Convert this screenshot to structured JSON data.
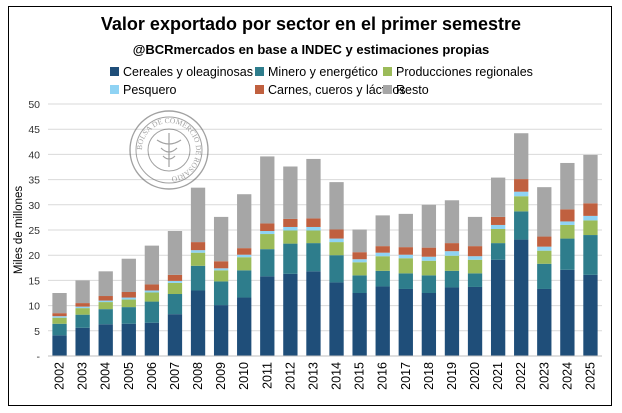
{
  "chart_data": {
    "type": "bar",
    "stacked": true,
    "title": "Valor exportado por sector en el primer semestre",
    "subtitle": "@BCRmercados en base a INDEC y estimaciones propias",
    "ylabel": "Miles de millones",
    "xlabel": "",
    "ylim": [
      0,
      50
    ],
    "yticks": [
      "-",
      "5",
      "10",
      "15",
      "20",
      "25",
      "30",
      "35",
      "40",
      "45",
      "50"
    ],
    "grid": true,
    "legend_position": "top",
    "watermark_text": "BOLSA DE COMERCIO DE ROSARIO",
    "categories": [
      "2002",
      "2003",
      "2004",
      "2005",
      "2006",
      "2007",
      "2008",
      "2009",
      "2010",
      "2011",
      "2012",
      "2013",
      "2014",
      "2015",
      "2016",
      "2017",
      "2018",
      "2019",
      "2020",
      "2021",
      "2022",
      "2023",
      "2024",
      "2025"
    ],
    "series": [
      {
        "name": "Cereales y oleaginosas",
        "color": "#1f4e79",
        "values": [
          4.1,
          5.6,
          6.3,
          6.4,
          6.6,
          8.3,
          13.0,
          10.1,
          11.6,
          15.8,
          16.3,
          16.8,
          14.6,
          12.5,
          13.8,
          13.3,
          12.5,
          13.6,
          13.7,
          19.1,
          23.1,
          13.3,
          17.1,
          16.1
        ]
      },
      {
        "name": "Minero y energético",
        "color": "#2e7d8c",
        "values": [
          2.3,
          2.6,
          3.0,
          3.3,
          4.2,
          4.0,
          4.9,
          4.7,
          5.4,
          5.4,
          6.0,
          5.6,
          5.4,
          3.5,
          3.1,
          3.1,
          3.5,
          3.3,
          2.7,
          3.3,
          5.6,
          5.0,
          6.2,
          7.9
        ]
      },
      {
        "name": "Producciones regionales",
        "color": "#9bbb59",
        "values": [
          1.2,
          1.3,
          1.4,
          1.5,
          1.8,
          2.2,
          2.6,
          2.2,
          2.6,
          3.0,
          2.6,
          2.5,
          2.6,
          2.6,
          2.9,
          3.0,
          2.9,
          3.0,
          2.7,
          2.8,
          3.0,
          2.6,
          2.7,
          2.9
        ]
      },
      {
        "name": "Pesquero",
        "color": "#8fd3f4",
        "values": [
          0.3,
          0.3,
          0.3,
          0.4,
          0.4,
          0.4,
          0.5,
          0.4,
          0.5,
          0.6,
          0.7,
          0.7,
          0.7,
          0.6,
          0.7,
          0.7,
          0.8,
          0.9,
          0.7,
          0.8,
          0.9,
          0.8,
          0.7,
          0.9
        ]
      },
      {
        "name": "Carnes, cueros y lácteos",
        "color": "#c0603f",
        "values": [
          0.6,
          0.7,
          0.9,
          1.1,
          1.2,
          1.2,
          1.6,
          1.4,
          1.3,
          1.5,
          1.6,
          1.7,
          1.8,
          1.4,
          1.3,
          1.5,
          1.8,
          1.6,
          2.0,
          1.6,
          2.5,
          2.0,
          2.4,
          2.5
        ]
      },
      {
        "name": "Resto",
        "color": "#a6a6a6",
        "values": [
          4.0,
          4.5,
          4.9,
          6.6,
          7.7,
          8.7,
          10.8,
          8.8,
          10.7,
          13.3,
          10.4,
          11.8,
          9.4,
          4.5,
          6.1,
          6.6,
          8.5,
          8.5,
          5.8,
          7.8,
          9.1,
          9.8,
          9.2,
          9.6
        ]
      }
    ]
  }
}
